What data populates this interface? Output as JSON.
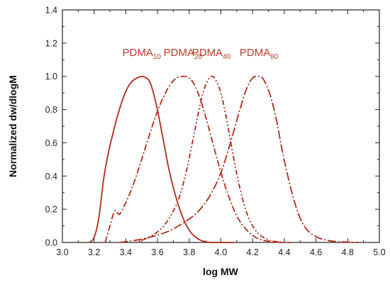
{
  "chart_data": {
    "type": "line",
    "title": "",
    "xlabel": "log MW",
    "ylabel": "Normalized dw/dlogM",
    "xlim": [
      3.0,
      5.0
    ],
    "ylim": [
      0.0,
      1.4
    ],
    "x_ticks": [
      "3.0",
      "3.2",
      "3.4",
      "3.6",
      "3.8",
      "4.0",
      "4.2",
      "4.4",
      "4.6",
      "4.8",
      "5.0"
    ],
    "y_ticks": [
      "0.0",
      "0.2",
      "0.4",
      "0.6",
      "0.8",
      "1.0",
      "1.2",
      "1.4"
    ],
    "grid": false,
    "legend": "inline labels above peaks",
    "line_color": "#b22a18",
    "label_color": "#c0392b",
    "series": [
      {
        "name": "PDMA10",
        "label_main": "PDMA",
        "label_sub": "10",
        "dash": "solid",
        "x": [
          3.17,
          3.2,
          3.23,
          3.26,
          3.29,
          3.32,
          3.35,
          3.38,
          3.41,
          3.44,
          3.47,
          3.5,
          3.52,
          3.55,
          3.58,
          3.61,
          3.64,
          3.67,
          3.7,
          3.73,
          3.76,
          3.79,
          3.82,
          3.85,
          3.88,
          3.91,
          3.94,
          3.97,
          4.0,
          4.08
        ],
        "y": [
          0.0,
          0.03,
          0.15,
          0.38,
          0.54,
          0.66,
          0.77,
          0.86,
          0.93,
          0.97,
          0.99,
          1.0,
          0.995,
          0.97,
          0.88,
          0.75,
          0.6,
          0.45,
          0.33,
          0.23,
          0.15,
          0.09,
          0.05,
          0.025,
          0.01,
          0.003,
          0.0,
          0.0,
          0.0,
          0.0
        ]
      },
      {
        "name": "PDMA20",
        "label_main": "PDMA",
        "label_sub": "20",
        "dash": "dash-dot",
        "x": [
          3.27,
          3.3,
          3.33,
          3.36,
          3.4,
          3.44,
          3.48,
          3.52,
          3.56,
          3.6,
          3.64,
          3.68,
          3.72,
          3.76,
          3.79,
          3.82,
          3.86,
          3.9,
          3.94,
          3.98,
          4.02,
          4.06,
          4.1,
          4.14,
          4.18,
          4.22,
          4.26,
          4.3,
          4.35,
          4.4
        ],
        "y": [
          0.0,
          0.1,
          0.19,
          0.17,
          0.24,
          0.33,
          0.44,
          0.56,
          0.68,
          0.79,
          0.88,
          0.95,
          0.99,
          1.0,
          0.995,
          0.97,
          0.89,
          0.77,
          0.63,
          0.49,
          0.36,
          0.25,
          0.16,
          0.1,
          0.06,
          0.03,
          0.015,
          0.007,
          0.002,
          0.0
        ]
      },
      {
        "name": "PDMA40",
        "label_main": "PDMA",
        "label_sub": "40",
        "dash": "dash-dot-dot",
        "x": [
          3.46,
          3.52,
          3.58,
          3.64,
          3.7,
          3.74,
          3.78,
          3.82,
          3.86,
          3.89,
          3.92,
          3.94,
          3.96,
          3.99,
          4.02,
          4.05,
          4.08,
          4.11,
          4.14,
          4.17,
          4.2,
          4.24,
          4.28,
          4.32,
          4.36,
          4.4,
          4.44
        ],
        "y": [
          0.0,
          0.02,
          0.05,
          0.1,
          0.19,
          0.28,
          0.42,
          0.6,
          0.79,
          0.91,
          0.98,
          1.0,
          0.99,
          0.93,
          0.82,
          0.67,
          0.51,
          0.37,
          0.25,
          0.16,
          0.1,
          0.05,
          0.025,
          0.01,
          0.004,
          0.001,
          0.0
        ]
      },
      {
        "name": "PDMA80",
        "label_main": "PDMA",
        "label_sub": "80",
        "dash": "long-dash-dot",
        "x": [
          3.36,
          3.5,
          3.65,
          3.75,
          3.85,
          3.93,
          4.0,
          4.06,
          4.12,
          4.16,
          4.2,
          4.24,
          4.27,
          4.31,
          4.35,
          4.39,
          4.44,
          4.49,
          4.54,
          4.6,
          4.66,
          4.72,
          4.8,
          4.87
        ],
        "y": [
          0.0,
          0.02,
          0.06,
          0.11,
          0.18,
          0.28,
          0.42,
          0.6,
          0.8,
          0.92,
          0.99,
          1.0,
          0.98,
          0.89,
          0.74,
          0.54,
          0.33,
          0.17,
          0.08,
          0.035,
          0.015,
          0.006,
          0.002,
          0.0
        ]
      }
    ]
  }
}
